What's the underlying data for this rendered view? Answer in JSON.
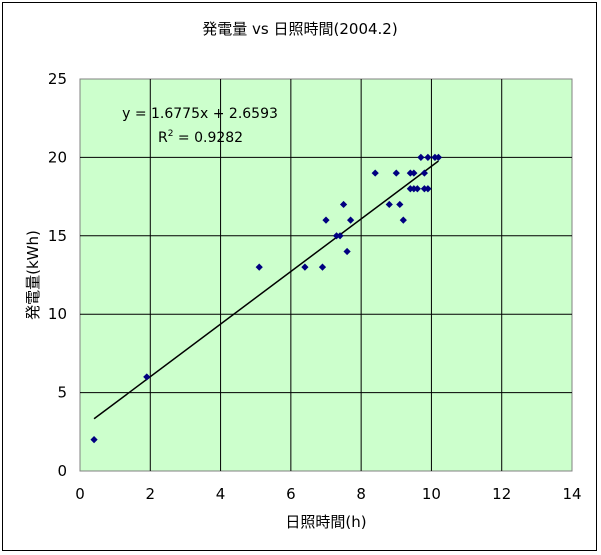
{
  "chart_data": {
    "type": "scatter",
    "title": "発電量 vs 日照時間(2004.2)",
    "xlabel": "日照時間(h)",
    "ylabel": "発電量(kWh)",
    "xlim": [
      0,
      14
    ],
    "ylim": [
      0,
      25
    ],
    "x_ticks": [
      0,
      2,
      4,
      6,
      8,
      10,
      12,
      14
    ],
    "y_ticks": [
      0,
      5,
      10,
      15,
      20,
      25
    ],
    "grid": true,
    "plot_background": "#CCFFCC",
    "marker_color": "#000080",
    "trendline_color": "#000000",
    "points": [
      {
        "x": 0.4,
        "y": 2
      },
      {
        "x": 1.9,
        "y": 6
      },
      {
        "x": 5.1,
        "y": 13
      },
      {
        "x": 6.4,
        "y": 13
      },
      {
        "x": 6.9,
        "y": 13
      },
      {
        "x": 7.0,
        "y": 16
      },
      {
        "x": 7.3,
        "y": 15
      },
      {
        "x": 7.4,
        "y": 15
      },
      {
        "x": 7.5,
        "y": 17
      },
      {
        "x": 7.6,
        "y": 14
      },
      {
        "x": 7.7,
        "y": 16
      },
      {
        "x": 8.4,
        "y": 19
      },
      {
        "x": 8.8,
        "y": 17
      },
      {
        "x": 9.0,
        "y": 19
      },
      {
        "x": 9.1,
        "y": 17
      },
      {
        "x": 9.2,
        "y": 16
      },
      {
        "x": 9.4,
        "y": 18
      },
      {
        "x": 9.4,
        "y": 19
      },
      {
        "x": 9.5,
        "y": 19
      },
      {
        "x": 9.5,
        "y": 18
      },
      {
        "x": 9.6,
        "y": 18
      },
      {
        "x": 9.7,
        "y": 20
      },
      {
        "x": 9.8,
        "y": 19
      },
      {
        "x": 9.8,
        "y": 18
      },
      {
        "x": 9.9,
        "y": 18
      },
      {
        "x": 9.9,
        "y": 20
      },
      {
        "x": 10.1,
        "y": 20
      },
      {
        "x": 10.2,
        "y": 20
      }
    ],
    "trendline": {
      "slope": 1.6775,
      "intercept": 2.6593,
      "x_range": [
        0.4,
        10.2
      ],
      "equation": "y = 1.6775x + 2.6593",
      "r2_prefix": "R",
      "r2_sup": "2",
      "r2_value": " = 0.9282"
    }
  }
}
